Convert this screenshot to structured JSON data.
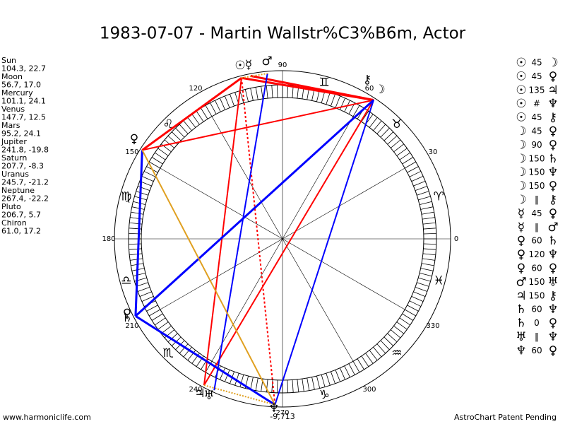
{
  "header": {
    "title": "1983-07-07 - Martin Wallstr%C3%B6m, Actor"
  },
  "planets": [
    {
      "name": "Sun",
      "coords": "104.3, 22.7",
      "glyph": "☉"
    },
    {
      "name": "Moon",
      "coords": "56.7, 17.0",
      "glyph": "☽"
    },
    {
      "name": "Mercury",
      "coords": "101.1, 24.1",
      "glyph": "☿"
    },
    {
      "name": "Venus",
      "coords": "147.7, 12.5",
      "glyph": "♀"
    },
    {
      "name": "Mars",
      "coords": "95.2, 24.1",
      "glyph": "♂"
    },
    {
      "name": "Jupiter",
      "coords": "241.8, -19.8",
      "glyph": "♃"
    },
    {
      "name": "Saturn",
      "coords": "207.7, -8.3",
      "glyph": "♄"
    },
    {
      "name": "Uranus",
      "coords": "245.7, -21.2",
      "glyph": "♅"
    },
    {
      "name": "Neptune",
      "coords": "267.4, -22.2",
      "glyph": "♆"
    },
    {
      "name": "Pluto",
      "coords": "206.7, 5.7",
      "glyph": "♀"
    },
    {
      "name": "Chiron",
      "coords": "61.0, 17.2",
      "glyph": "⚷"
    }
  ],
  "signs": [
    "♈",
    "♉",
    "♊",
    "♋",
    "♌",
    "♍",
    "♎",
    "♏",
    "♐",
    "♑",
    "♒",
    "♓"
  ],
  "degree_labels": [
    "0",
    "30",
    "60",
    "90",
    "120",
    "150",
    "180",
    "210",
    "240",
    "270",
    "300",
    "330"
  ],
  "neptune_note": "-9,713",
  "aspects": [
    {
      "p1": "☉",
      "aspect": "45",
      "p2": "☽"
    },
    {
      "p1": "☉",
      "aspect": "45",
      "p2": "♀"
    },
    {
      "p1": "☉",
      "aspect": "135",
      "p2": "♃"
    },
    {
      "p1": "☉",
      "aspect": "#",
      "p2": "♆"
    },
    {
      "p1": "☉",
      "aspect": "45",
      "p2": "⚷"
    },
    {
      "p1": "☽",
      "aspect": "45",
      "p2": "♀"
    },
    {
      "p1": "☽",
      "aspect": "90",
      "p2": "♀"
    },
    {
      "p1": "☽",
      "aspect": "150",
      "p2": "♄"
    },
    {
      "p1": "☽",
      "aspect": "150",
      "p2": "♆"
    },
    {
      "p1": "☽",
      "aspect": "150",
      "p2": "♀"
    },
    {
      "p1": "☽",
      "aspect": "‖",
      "p2": "⚷"
    },
    {
      "p1": "☿",
      "aspect": "45",
      "p2": "♀"
    },
    {
      "p1": "☿",
      "aspect": "‖",
      "p2": "♂"
    },
    {
      "p1": "♀",
      "aspect": "60",
      "p2": "♄"
    },
    {
      "p1": "♀",
      "aspect": "120",
      "p2": "♆"
    },
    {
      "p1": "♀",
      "aspect": "60",
      "p2": "♀"
    },
    {
      "p1": "♂",
      "aspect": "150",
      "p2": "♅"
    },
    {
      "p1": "♃",
      "aspect": "150",
      "p2": "⚷"
    },
    {
      "p1": "♄",
      "aspect": "60",
      "p2": "♆"
    },
    {
      "p1": "♄",
      "aspect": "0",
      "p2": "♀"
    },
    {
      "p1": "♅",
      "aspect": "‖",
      "p2": "♆"
    },
    {
      "p1": "♆",
      "aspect": "60",
      "p2": "♀"
    }
  ],
  "footer": {
    "left": "www.harmoniclife.com",
    "right": "AstroChart Patent Pending"
  }
}
